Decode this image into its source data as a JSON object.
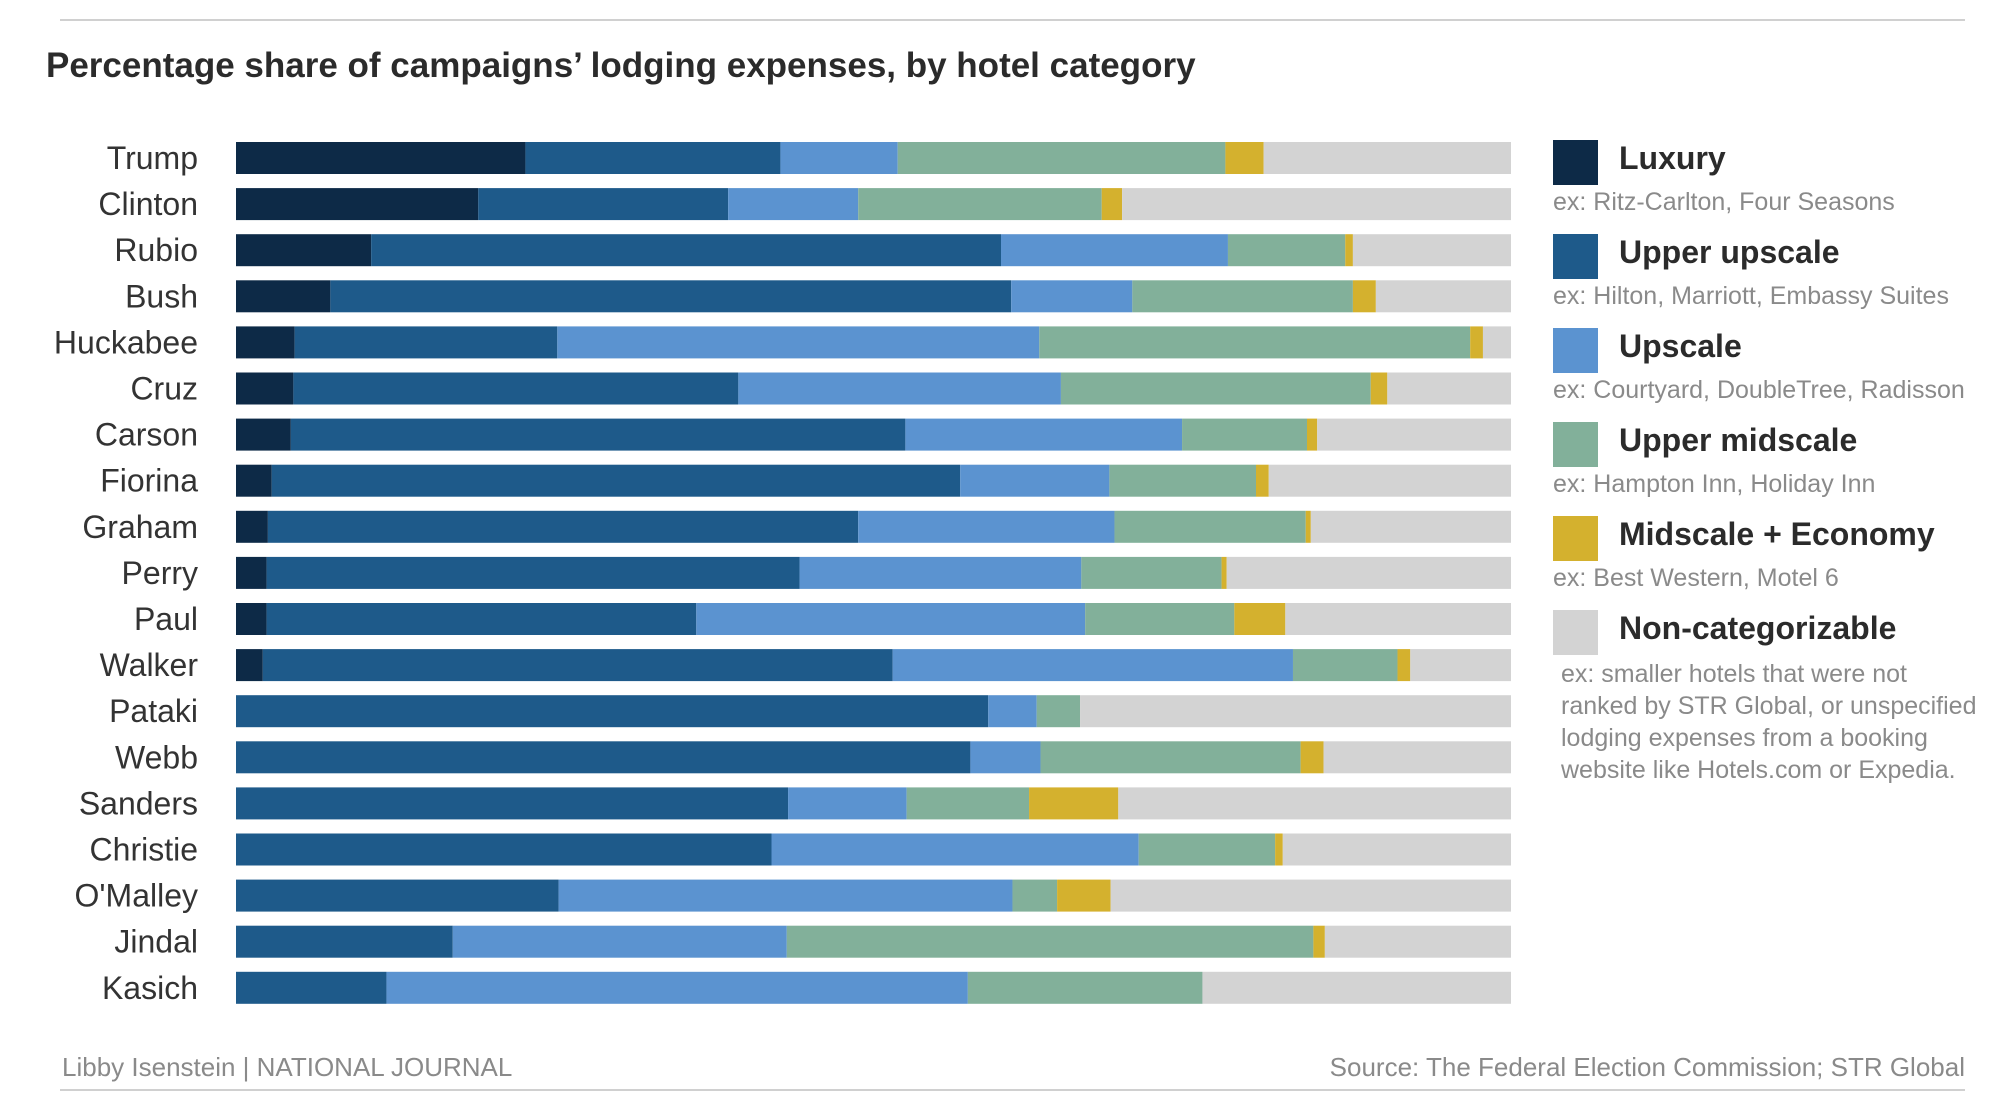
{
  "title": "Percentage share of campaigns’ lodging expenses, by hotel category",
  "legend": [
    {
      "name": "Luxury",
      "example": "ex: Ritz-Carlton, Four Seasons",
      "color": "#0d2a47"
    },
    {
      "name": "Upper upscale",
      "example": "ex: Hilton, Marriott, Embassy Suites",
      "color": "#1e5a8a"
    },
    {
      "name": "Upscale",
      "example": "ex: Courtyard, DoubleTree, Radisson",
      "color": "#5b93d0"
    },
    {
      "name": "Upper midscale",
      "example": "ex: Hampton Inn, Holiday Inn",
      "color": "#82b09a"
    },
    {
      "name": "Midscale + Economy",
      "example": "ex: Best Western, Motel 6",
      "color": "#d4b12e"
    },
    {
      "name": "Non-categorizable",
      "example": "ex: smaller hotels that were not ranked by STR Global, or unspecified lodging expenses from a booking website like Hotels.com or Expedia.",
      "color": "#d3d3d3"
    }
  ],
  "footer": {
    "credit": "Libby Isenstein | NATIONAL JOURNAL",
    "source": "Source: The Federal Election Commission; STR Global"
  },
  "chart_data": {
    "type": "bar",
    "orientation": "horizontal",
    "stacked": true,
    "title": "Percentage share of campaigns’ lodging expenses, by hotel category",
    "categories": [
      "Trump",
      "Clinton",
      "Rubio",
      "Bush",
      "Huckabee",
      "Cruz",
      "Carson",
      "Fiorina",
      "Graham",
      "Perry",
      "Paul",
      "Walker",
      "Pataki",
      "Webb",
      "Sanders",
      "Christie",
      "O'Malley",
      "Jindal",
      "Kasich"
    ],
    "xlim": [
      0,
      100
    ],
    "series": [
      {
        "name": "Luxury",
        "color": "#0d2a47",
        "values": [
          22.7,
          19.0,
          10.6,
          7.4,
          4.6,
          4.5,
          4.3,
          2.8,
          2.5,
          2.4,
          2.4,
          2.1,
          0,
          0,
          0,
          0,
          0,
          0,
          0
        ]
      },
      {
        "name": "Upper upscale",
        "color": "#1e5a8a",
        "values": [
          20.0,
          19.6,
          49.4,
          53.4,
          20.6,
          34.9,
          48.2,
          54.0,
          46.3,
          41.8,
          33.7,
          49.4,
          59.0,
          57.6,
          43.3,
          42.0,
          25.3,
          17.0,
          11.8
        ]
      },
      {
        "name": "Upscale",
        "color": "#5b93d0",
        "values": [
          9.2,
          10.2,
          17.8,
          9.5,
          37.8,
          25.3,
          21.7,
          11.7,
          20.1,
          22.1,
          30.5,
          31.4,
          3.8,
          5.5,
          9.3,
          28.8,
          35.6,
          26.2,
          45.6
        ]
      },
      {
        "name": "Upper midscale",
        "color": "#82b09a",
        "values": [
          25.7,
          19.1,
          9.2,
          17.3,
          33.8,
          24.3,
          9.8,
          11.5,
          15.0,
          11.0,
          11.7,
          8.2,
          3.4,
          20.4,
          9.6,
          10.7,
          3.5,
          41.3,
          18.4
        ]
      },
      {
        "name": "Midscale + Economy",
        "color": "#d4b12e",
        "values": [
          3.0,
          1.6,
          0.6,
          1.8,
          1.0,
          1.3,
          0.8,
          1.0,
          0.4,
          0.4,
          4.0,
          1.0,
          0,
          1.8,
          7.0,
          0.6,
          4.2,
          0.9,
          0
        ]
      },
      {
        "name": "Non-categorizable",
        "color": "#d3d3d3",
        "values": [
          19.4,
          30.5,
          12.4,
          10.6,
          2.2,
          9.7,
          15.2,
          19.0,
          15.7,
          22.3,
          17.7,
          7.9,
          33.8,
          14.7,
          30.8,
          17.9,
          31.4,
          14.6,
          24.2
        ]
      }
    ]
  }
}
